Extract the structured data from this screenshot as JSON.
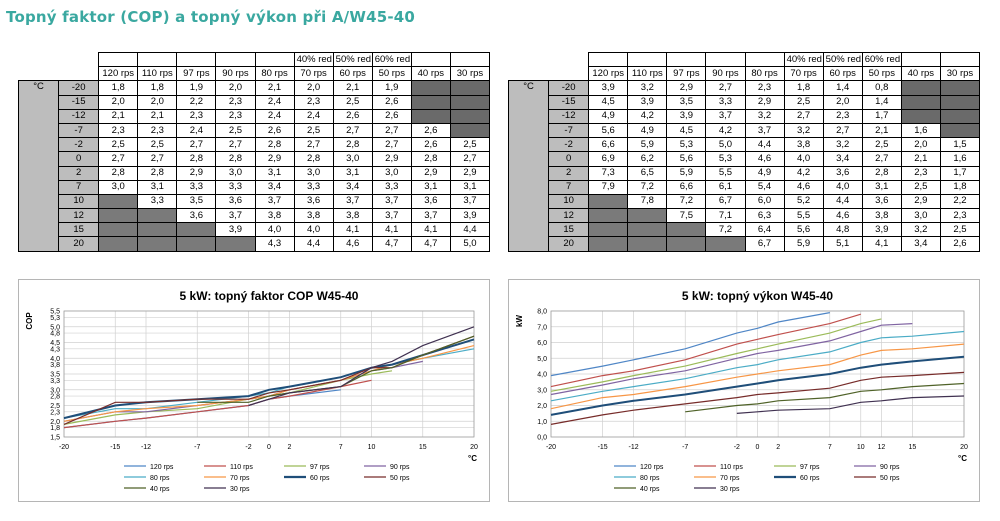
{
  "page": {
    "title": "Topný faktor (COP) a topný výkon při A/W45-40"
  },
  "tables": [
    {
      "red_headers": [
        "40% red",
        "50% red",
        "60% red"
      ],
      "rps_headers": [
        "120 rps",
        "110 rps",
        "97 rps",
        "90 rps",
        "80 rps",
        "70 rps",
        "60 rps",
        "50 rps",
        "40 rps",
        "30 rps"
      ],
      "unit": "°C",
      "rows": [
        {
          "t": "-20",
          "v": [
            "1,8",
            "1,8",
            "1,9",
            "2,0",
            "2,1",
            "2,0",
            "2,1",
            "1,9",
            "",
            ""
          ]
        },
        {
          "t": "-15",
          "v": [
            "2,0",
            "2,0",
            "2,2",
            "2,3",
            "2,4",
            "2,3",
            "2,5",
            "2,6",
            "",
            ""
          ]
        },
        {
          "t": "-12",
          "v": [
            "2,1",
            "2,1",
            "2,3",
            "2,3",
            "2,4",
            "2,4",
            "2,6",
            "2,6",
            "",
            ""
          ]
        },
        {
          "t": "-7",
          "v": [
            "2,3",
            "2,3",
            "2,4",
            "2,5",
            "2,6",
            "2,5",
            "2,7",
            "2,7",
            "2,6",
            ""
          ]
        },
        {
          "t": "-2",
          "v": [
            "2,5",
            "2,5",
            "2,7",
            "2,7",
            "2,8",
            "2,7",
            "2,8",
            "2,7",
            "2,6",
            "2,5"
          ]
        },
        {
          "t": "0",
          "v": [
            "2,7",
            "2,7",
            "2,8",
            "2,8",
            "2,9",
            "2,8",
            "3,0",
            "2,9",
            "2,8",
            "2,7"
          ]
        },
        {
          "t": "2",
          "v": [
            "2,8",
            "2,8",
            "2,9",
            "3,0",
            "3,1",
            "3,0",
            "3,1",
            "3,0",
            "2,9",
            "2,9"
          ]
        },
        {
          "t": "7",
          "v": [
            "3,0",
            "3,1",
            "3,3",
            "3,3",
            "3,4",
            "3,3",
            "3,4",
            "3,3",
            "3,1",
            "3,1"
          ]
        },
        {
          "t": "10",
          "v": [
            "",
            "3,3",
            "3,5",
            "3,6",
            "3,7",
            "3,6",
            "3,7",
            "3,7",
            "3,6",
            "3,7"
          ]
        },
        {
          "t": "12",
          "v": [
            "",
            "",
            "3,6",
            "3,7",
            "3,8",
            "3,8",
            "3,8",
            "3,7",
            "3,7",
            "3,9"
          ]
        },
        {
          "t": "15",
          "v": [
            "",
            "",
            "",
            "3,9",
            "4,0",
            "4,0",
            "4,1",
            "4,1",
            "4,1",
            "4,4"
          ]
        },
        {
          "t": "20",
          "v": [
            "",
            "",
            "",
            "",
            "4,3",
            "4,4",
            "4,6",
            "4,7",
            "4,7",
            "5,0"
          ]
        }
      ]
    },
    {
      "red_headers": [
        "40% red",
        "50% red",
        "60% red"
      ],
      "rps_headers": [
        "120 rps",
        "110 rps",
        "97 rps",
        "90 rps",
        "80 rps",
        "70 rps",
        "60 rps",
        "50 rps",
        "40 rps",
        "30 rps"
      ],
      "unit": "°C",
      "rows": [
        {
          "t": "-20",
          "v": [
            "3,9",
            "3,2",
            "2,9",
            "2,7",
            "2,3",
            "1,8",
            "1,4",
            "0,8",
            "",
            ""
          ]
        },
        {
          "t": "-15",
          "v": [
            "4,5",
            "3,9",
            "3,5",
            "3,3",
            "2,9",
            "2,5",
            "2,0",
            "1,4",
            "",
            ""
          ]
        },
        {
          "t": "-12",
          "v": [
            "4,9",
            "4,2",
            "3,9",
            "3,7",
            "3,2",
            "2,7",
            "2,3",
            "1,7",
            "",
            ""
          ]
        },
        {
          "t": "-7",
          "v": [
            "5,6",
            "4,9",
            "4,5",
            "4,2",
            "3,7",
            "3,2",
            "2,7",
            "2,1",
            "1,6",
            ""
          ]
        },
        {
          "t": "-2",
          "v": [
            "6,6",
            "5,9",
            "5,3",
            "5,0",
            "4,4",
            "3,8",
            "3,2",
            "2,5",
            "2,0",
            "1,5"
          ]
        },
        {
          "t": "0",
          "v": [
            "6,9",
            "6,2",
            "5,6",
            "5,3",
            "4,6",
            "4,0",
            "3,4",
            "2,7",
            "2,1",
            "1,6"
          ]
        },
        {
          "t": "2",
          "v": [
            "7,3",
            "6,5",
            "5,9",
            "5,5",
            "4,9",
            "4,2",
            "3,6",
            "2,8",
            "2,3",
            "1,7"
          ]
        },
        {
          "t": "7",
          "v": [
            "7,9",
            "7,2",
            "6,6",
            "6,1",
            "5,4",
            "4,6",
            "4,0",
            "3,1",
            "2,5",
            "1,8"
          ]
        },
        {
          "t": "10",
          "v": [
            "",
            "7,8",
            "7,2",
            "6,7",
            "6,0",
            "5,2",
            "4,4",
            "3,6",
            "2,9",
            "2,2"
          ]
        },
        {
          "t": "12",
          "v": [
            "",
            "",
            "7,5",
            "7,1",
            "6,3",
            "5,5",
            "4,6",
            "3,8",
            "3,0",
            "2,3"
          ]
        },
        {
          "t": "15",
          "v": [
            "",
            "",
            "",
            "7,2",
            "6,4",
            "5,6",
            "4,8",
            "3,9",
            "3,2",
            "2,5"
          ]
        },
        {
          "t": "20",
          "v": [
            "",
            "",
            "",
            "",
            "6,7",
            "5,9",
            "5,1",
            "4,1",
            "3,4",
            "2,6"
          ]
        }
      ]
    }
  ],
  "legend_labels": [
    "120 rps",
    "110 rps",
    "97 rps",
    "90 rps",
    "80 rps",
    "70 rps",
    "60 rps",
    "50 rps",
    "40 rps",
    "30 rps"
  ],
  "series_colors": [
    "#4f86c6",
    "#c0504d",
    "#9bbb59",
    "#8064a2",
    "#4bacc6",
    "#f79646",
    "#1f4e79",
    "#772c2a",
    "#4f6228",
    "#403151"
  ],
  "chart_data": [
    {
      "type": "line",
      "title": "5 kW: topný faktor COP W45-40",
      "xlabel": "°C",
      "ylabel": "COP",
      "x": [
        -20,
        -15,
        -12,
        -7,
        -2,
        0,
        2,
        7,
        10,
        12,
        15,
        20
      ],
      "xlim": [
        -20,
        20
      ],
      "ylim": [
        1.5,
        5.5
      ],
      "yticks": [
        "1,5",
        "1,8",
        "2,0",
        "2,3",
        "2,5",
        "2,8",
        "3,0",
        "3,3",
        "3,5",
        "3,8",
        "4,0",
        "4,3",
        "4,5",
        "4,8",
        "5,0",
        "5,3",
        "5,5"
      ],
      "xticks": [
        "-20",
        "-15",
        "-12",
        "-7",
        "-2",
        "0",
        "2",
        "7",
        "10",
        "15",
        "20"
      ],
      "grid": true,
      "legend": "bottom",
      "series": [
        {
          "name": "120 rps",
          "values": [
            1.8,
            2.0,
            2.1,
            2.3,
            2.5,
            2.7,
            2.8,
            3.0,
            null,
            null,
            null,
            null
          ]
        },
        {
          "name": "110 rps",
          "values": [
            1.8,
            2.0,
            2.1,
            2.3,
            2.5,
            2.7,
            2.8,
            3.1,
            3.3,
            null,
            null,
            null
          ]
        },
        {
          "name": "97 rps",
          "values": [
            1.9,
            2.2,
            2.3,
            2.4,
            2.7,
            2.8,
            2.9,
            3.3,
            3.5,
            3.6,
            null,
            null
          ]
        },
        {
          "name": "90 rps",
          "values": [
            2.0,
            2.3,
            2.3,
            2.5,
            2.7,
            2.8,
            3.0,
            3.3,
            3.6,
            3.7,
            3.9,
            null
          ]
        },
        {
          "name": "80 rps",
          "values": [
            2.1,
            2.4,
            2.4,
            2.6,
            2.8,
            2.9,
            3.1,
            3.4,
            3.7,
            3.8,
            4.0,
            4.3
          ]
        },
        {
          "name": "70 rps",
          "values": [
            2.0,
            2.3,
            2.4,
            2.5,
            2.7,
            2.8,
            3.0,
            3.3,
            3.6,
            3.8,
            4.0,
            4.4
          ]
        },
        {
          "name": "60 rps",
          "values": [
            2.1,
            2.5,
            2.6,
            2.7,
            2.8,
            3.0,
            3.1,
            3.4,
            3.7,
            3.8,
            4.1,
            4.6
          ]
        },
        {
          "name": "50 rps",
          "values": [
            1.9,
            2.6,
            2.6,
            2.7,
            2.7,
            2.9,
            3.0,
            3.3,
            3.7,
            3.7,
            4.1,
            4.7
          ]
        },
        {
          "name": "40 rps",
          "values": [
            null,
            null,
            null,
            2.6,
            2.6,
            2.8,
            2.9,
            3.1,
            3.6,
            3.7,
            4.1,
            4.7
          ]
        },
        {
          "name": "30 rps",
          "values": [
            null,
            null,
            null,
            null,
            2.5,
            2.7,
            2.9,
            3.1,
            3.7,
            3.9,
            4.4,
            5.0
          ]
        }
      ]
    },
    {
      "type": "line",
      "title": "5 kW: topný výkon W45-40",
      "xlabel": "°C",
      "ylabel": "kW",
      "x": [
        -20,
        -15,
        -12,
        -7,
        -2,
        0,
        2,
        7,
        10,
        12,
        15,
        20
      ],
      "xlim": [
        -20,
        20
      ],
      "ylim": [
        0,
        8
      ],
      "yticks": [
        "0,0",
        "1,0",
        "2,0",
        "3,0",
        "4,0",
        "5,0",
        "6,0",
        "7,0",
        "8,0"
      ],
      "xticks": [
        "-20",
        "-15",
        "-12",
        "-7",
        "-2",
        "0",
        "2",
        "7",
        "10",
        "12",
        "15",
        "20"
      ],
      "grid": true,
      "legend": "bottom",
      "series": [
        {
          "name": "120 rps",
          "values": [
            3.9,
            4.5,
            4.9,
            5.6,
            6.6,
            6.9,
            7.3,
            7.9,
            null,
            null,
            null,
            null
          ]
        },
        {
          "name": "110 rps",
          "values": [
            3.2,
            3.9,
            4.2,
            4.9,
            5.9,
            6.2,
            6.5,
            7.2,
            7.8,
            null,
            null,
            null
          ]
        },
        {
          "name": "97 rps",
          "values": [
            2.9,
            3.5,
            3.9,
            4.5,
            5.3,
            5.6,
            5.9,
            6.6,
            7.2,
            7.5,
            null,
            null
          ]
        },
        {
          "name": "90 rps",
          "values": [
            2.7,
            3.3,
            3.7,
            4.2,
            5.0,
            5.3,
            5.5,
            6.1,
            6.7,
            7.1,
            7.2,
            null
          ]
        },
        {
          "name": "80 rps",
          "values": [
            2.3,
            2.9,
            3.2,
            3.7,
            4.4,
            4.6,
            4.9,
            5.4,
            6.0,
            6.3,
            6.4,
            6.7
          ]
        },
        {
          "name": "70 rps",
          "values": [
            1.8,
            2.5,
            2.7,
            3.2,
            3.8,
            4.0,
            4.2,
            4.6,
            5.2,
            5.5,
            5.6,
            5.9
          ]
        },
        {
          "name": "60 rps",
          "values": [
            1.4,
            2.0,
            2.3,
            2.7,
            3.2,
            3.4,
            3.6,
            4.0,
            4.4,
            4.6,
            4.8,
            5.1
          ]
        },
        {
          "name": "50 rps",
          "values": [
            0.8,
            1.4,
            1.7,
            2.1,
            2.5,
            2.7,
            2.8,
            3.1,
            3.6,
            3.8,
            3.9,
            4.1
          ]
        },
        {
          "name": "40 rps",
          "values": [
            null,
            null,
            null,
            1.6,
            2.0,
            2.1,
            2.3,
            2.5,
            2.9,
            3.0,
            3.2,
            3.4
          ]
        },
        {
          "name": "30 rps",
          "values": [
            null,
            null,
            null,
            null,
            1.5,
            1.6,
            1.7,
            1.8,
            2.2,
            2.3,
            2.5,
            2.6
          ]
        }
      ]
    }
  ]
}
